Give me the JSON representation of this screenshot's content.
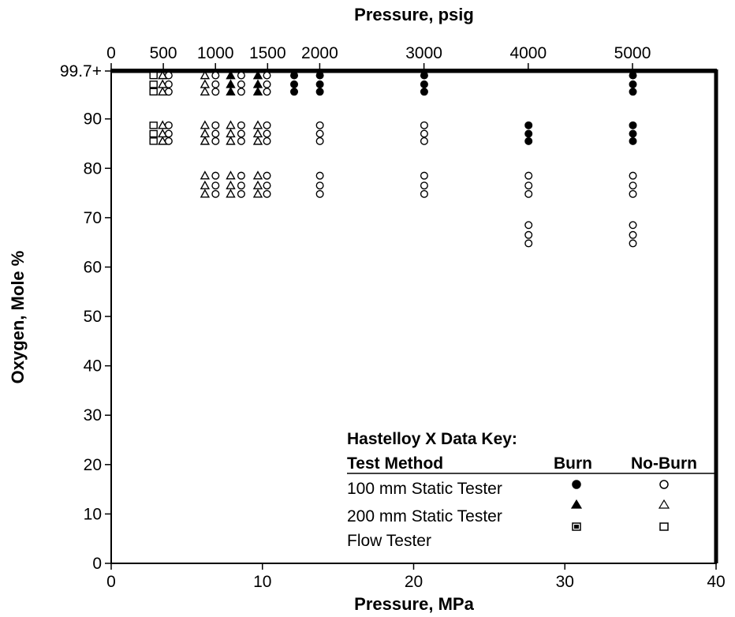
{
  "chart_data": {
    "type": "scatter",
    "title": "",
    "xlabel_bottom": "Pressure, MPa",
    "xlabel_top": "Pressure, psig",
    "ylabel": "Oxygen, Mole %",
    "x_ticks_bottom": [
      "0",
      "10",
      "20",
      "30",
      "40"
    ],
    "x_ticks_top": [
      "0",
      "500",
      "1000",
      "1500",
      "2000",
      "3000",
      "4000",
      "5000"
    ],
    "y_ticks": [
      "0",
      "10",
      "20",
      "30",
      "40",
      "50",
      "60",
      "70",
      "80",
      "90",
      "99.7+"
    ],
    "xlim": [
      0,
      40
    ],
    "ylim": [
      0,
      99.7
    ],
    "grid": false,
    "legend": {
      "title": "Hastelloy X Data Key:",
      "col_method": "Test Method",
      "col_burn": "Burn",
      "col_noburn": "No-Burn",
      "rows": [
        "100 mm Static Tester",
        "200 mm Static Tester",
        "Flow Tester"
      ]
    },
    "series": [
      {
        "method": "100 mm Static Tester",
        "outcome": "No-Burn",
        "marker": "circle",
        "filled": false,
        "points": [
          [
            3.8,
            95.5
          ],
          [
            3.8,
            97
          ],
          [
            3.8,
            98.8
          ],
          [
            3.8,
            85.5
          ],
          [
            3.8,
            87
          ],
          [
            3.8,
            88.7
          ],
          [
            6.9,
            95.5
          ],
          [
            6.9,
            97
          ],
          [
            6.9,
            98.8
          ],
          [
            6.9,
            85.5
          ],
          [
            6.9,
            87
          ],
          [
            6.9,
            88.7
          ],
          [
            6.9,
            74.8
          ],
          [
            6.9,
            76.5
          ],
          [
            6.9,
            78.5
          ],
          [
            8.6,
            95.5
          ],
          [
            8.6,
            97
          ],
          [
            8.6,
            98.8
          ],
          [
            8.6,
            85.5
          ],
          [
            8.6,
            87
          ],
          [
            8.6,
            88.7
          ],
          [
            8.6,
            74.8
          ],
          [
            8.6,
            76.5
          ],
          [
            8.6,
            78.5
          ],
          [
            10.3,
            95.5
          ],
          [
            10.3,
            97
          ],
          [
            10.3,
            98.8
          ],
          [
            10.3,
            85.5
          ],
          [
            10.3,
            87
          ],
          [
            10.3,
            88.7
          ],
          [
            10.3,
            74.8
          ],
          [
            10.3,
            76.5
          ],
          [
            10.3,
            78.5
          ],
          [
            13.8,
            85.5
          ],
          [
            13.8,
            87
          ],
          [
            13.8,
            88.7
          ],
          [
            13.8,
            74.8
          ],
          [
            13.8,
            76.5
          ],
          [
            13.8,
            78.5
          ],
          [
            20.7,
            85.5
          ],
          [
            20.7,
            87
          ],
          [
            20.7,
            88.7
          ],
          [
            20.7,
            74.8
          ],
          [
            20.7,
            76.5
          ],
          [
            20.7,
            78.5
          ],
          [
            27.6,
            74.8
          ],
          [
            27.6,
            76.5
          ],
          [
            27.6,
            78.5
          ],
          [
            27.6,
            64.8
          ],
          [
            27.6,
            66.5
          ],
          [
            27.6,
            68.5
          ],
          [
            34.5,
            74.8
          ],
          [
            34.5,
            76.5
          ],
          [
            34.5,
            78.5
          ],
          [
            34.5,
            64.8
          ],
          [
            34.5,
            66.5
          ],
          [
            34.5,
            68.5
          ]
        ]
      },
      {
        "method": "100 mm Static Tester",
        "outcome": "Burn",
        "marker": "circle",
        "filled": true,
        "points": [
          [
            12.1,
            95.5
          ],
          [
            12.1,
            97
          ],
          [
            12.1,
            98.8
          ],
          [
            13.8,
            95.5
          ],
          [
            13.8,
            97
          ],
          [
            13.8,
            98.8
          ],
          [
            20.7,
            95.5
          ],
          [
            20.7,
            97
          ],
          [
            20.7,
            98.8
          ],
          [
            27.6,
            85.5
          ],
          [
            27.6,
            87
          ],
          [
            27.6,
            88.7
          ],
          [
            34.5,
            95.5
          ],
          [
            34.5,
            97
          ],
          [
            34.5,
            98.8
          ],
          [
            34.5,
            85.5
          ],
          [
            34.5,
            87
          ],
          [
            34.5,
            88.7
          ]
        ]
      },
      {
        "method": "200 mm Static Tester",
        "outcome": "No-Burn",
        "marker": "triangle",
        "filled": false,
        "points": [
          [
            3.4,
            95.5
          ],
          [
            3.4,
            97
          ],
          [
            3.4,
            98.8
          ],
          [
            3.4,
            85.5
          ],
          [
            3.4,
            87
          ],
          [
            3.4,
            88.7
          ],
          [
            6.2,
            95.5
          ],
          [
            6.2,
            97
          ],
          [
            6.2,
            98.8
          ],
          [
            6.2,
            85.5
          ],
          [
            6.2,
            87
          ],
          [
            6.2,
            88.7
          ],
          [
            6.2,
            74.8
          ],
          [
            6.2,
            76.5
          ],
          [
            6.2,
            78.5
          ],
          [
            7.9,
            85.5
          ],
          [
            7.9,
            87
          ],
          [
            7.9,
            88.7
          ],
          [
            7.9,
            74.8
          ],
          [
            7.9,
            76.5
          ],
          [
            7.9,
            78.5
          ],
          [
            9.7,
            85.5
          ],
          [
            9.7,
            87
          ],
          [
            9.7,
            88.7
          ],
          [
            9.7,
            74.8
          ],
          [
            9.7,
            76.5
          ],
          [
            9.7,
            78.5
          ]
        ]
      },
      {
        "method": "200 mm Static Tester",
        "outcome": "Burn",
        "marker": "triangle",
        "filled": true,
        "points": [
          [
            7.9,
            95.5
          ],
          [
            7.9,
            97
          ],
          [
            7.9,
            98.8
          ],
          [
            9.7,
            95.5
          ],
          [
            9.7,
            97
          ],
          [
            9.7,
            98.8
          ]
        ]
      },
      {
        "method": "Flow Tester",
        "outcome": "No-Burn",
        "marker": "square",
        "filled": false,
        "points": [
          [
            2.8,
            95.5
          ],
          [
            2.8,
            97
          ],
          [
            2.8,
            98.8
          ],
          [
            2.8,
            85.5
          ],
          [
            2.8,
            87
          ],
          [
            2.8,
            88.7
          ]
        ]
      }
    ]
  }
}
